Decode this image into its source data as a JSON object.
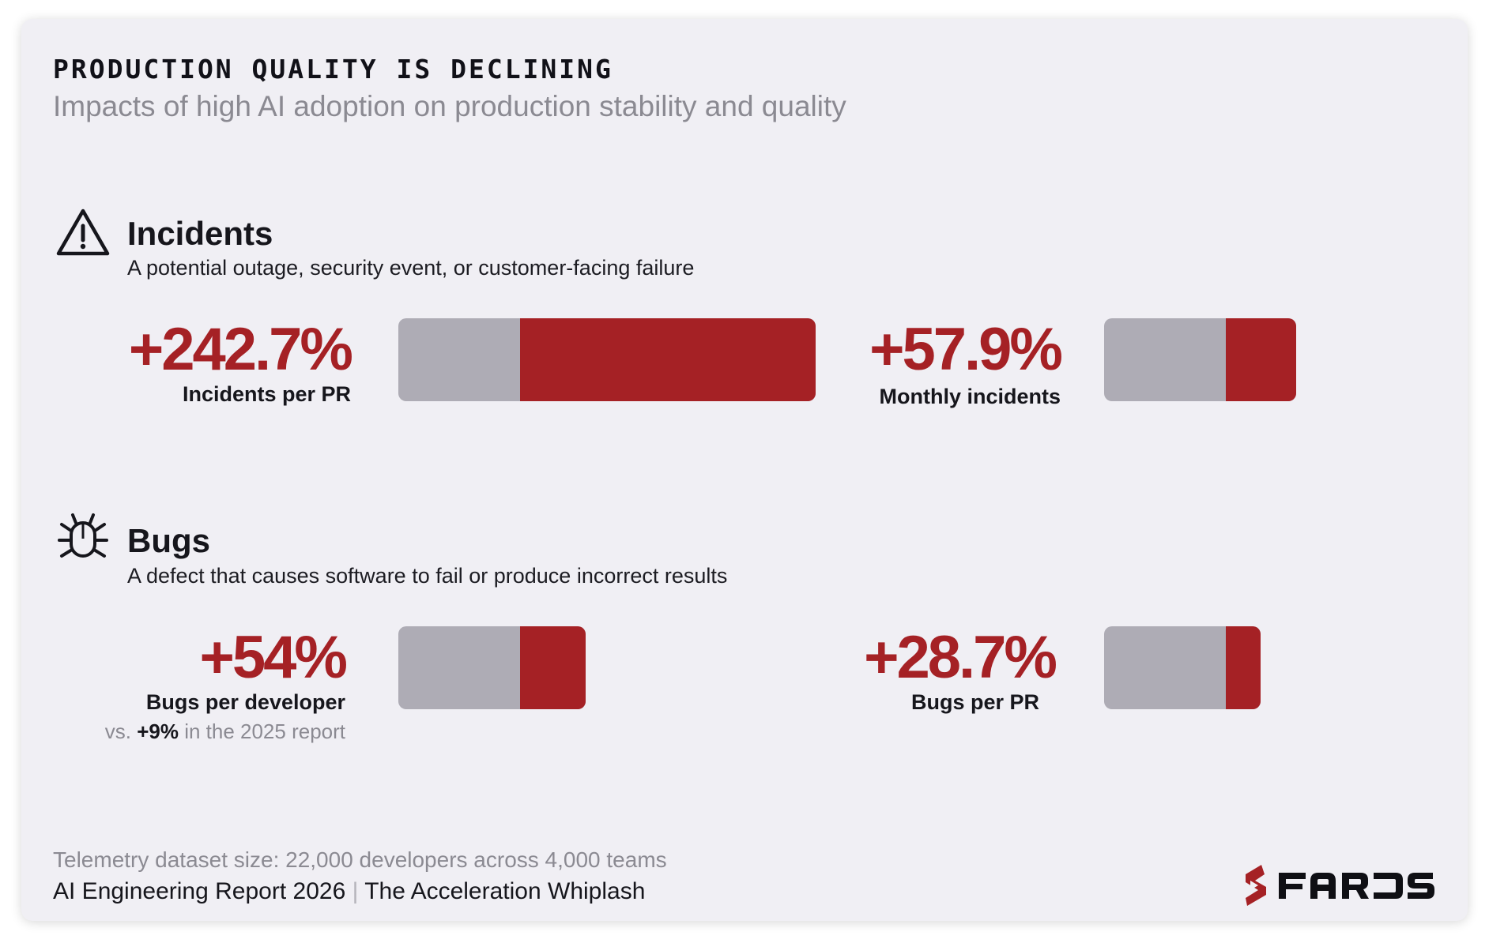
{
  "header": {
    "title": "PRODUCTION QUALITY IS DECLINING",
    "subtitle": "Impacts of high AI adoption on production stability and quality"
  },
  "sections": [
    {
      "heading": "Incidents",
      "description": "A potential outage, security event, or customer-facing failure",
      "icon": "warning-triangle-icon"
    },
    {
      "heading": "Bugs",
      "description": "A defect that causes software to fail or produce incorrect results",
      "icon": "bug-icon"
    }
  ],
  "chart_data": {
    "type": "bar",
    "colors": {
      "baseline": "#aeacb5",
      "increase": "#a52125"
    },
    "baseline_pct": 100,
    "metrics": [
      {
        "value_label": "+242.7%",
        "label": "Incidents per PR",
        "increase_pct": 242.7
      },
      {
        "value_label": "+57.9%",
        "label": "Monthly incidents",
        "increase_pct": 57.9
      },
      {
        "value_label": "+54%",
        "label": "Bugs per developer",
        "increase_pct": 54,
        "note": {
          "prefix": "vs.",
          "value": "+9%",
          "suffix": "in the 2025 report"
        }
      },
      {
        "value_label": "+28.7%",
        "label": "Bugs per PR",
        "increase_pct": 28.7
      }
    ]
  },
  "footer": {
    "dataset": "Telemetry dataset size: 22,000 developers across 4,000 teams",
    "report": "AI Engineering Report 2026",
    "separator": "|",
    "report_subtitle": "The Acceleration Whiplash"
  },
  "brand": {
    "name": "FAROS",
    "color": "#a52125"
  }
}
